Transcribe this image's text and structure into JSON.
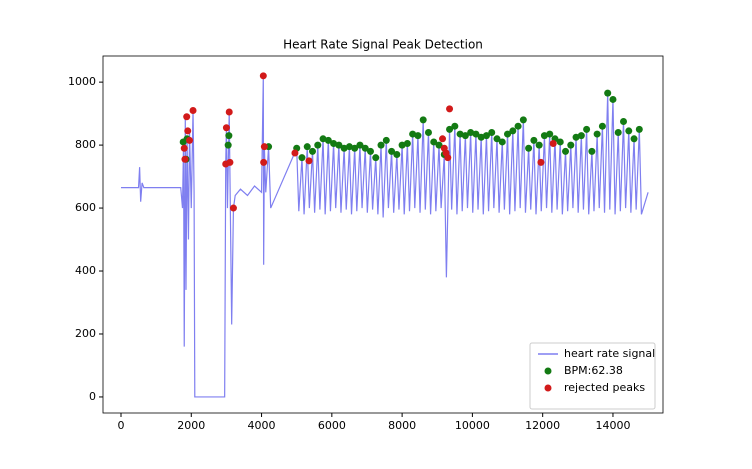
{
  "chart_data": {
    "type": "line",
    "title": "Heart Rate Signal Peak Detection",
    "xlim": [
      -512,
      15424
    ],
    "ylim": [
      -51,
      1083
    ],
    "xticks": [
      0,
      2000,
      4000,
      6000,
      8000,
      10000,
      12000,
      14000
    ],
    "yticks": [
      0,
      200,
      400,
      600,
      800,
      1000
    ],
    "legend": "lower right",
    "series": [
      {
        "name": "heart rate signal",
        "type": "line",
        "color": "#7f7ff0",
        "x": [
          0,
          500,
          530,
          560,
          600,
          650,
          1700,
          1750,
          1780,
          1800,
          1830,
          1850,
          1880,
          1920,
          1950,
          2000,
          2050,
          2080,
          2100,
          2950,
          2980,
          3000,
          3030,
          3080,
          3150,
          3200,
          3250,
          3400,
          3600,
          3800,
          4000,
          4050,
          4060,
          4080,
          4120,
          4200,
          4260,
          5000,
          5060,
          5150,
          5210,
          5300,
          5360,
          5450,
          5510,
          5600,
          5660,
          5750,
          5810,
          5900,
          5960,
          6050,
          6110,
          6200,
          6260,
          6350,
          6410,
          6500,
          6560,
          6650,
          6710,
          6800,
          6860,
          6950,
          7010,
          7100,
          7160,
          7250,
          7310,
          7400,
          7460,
          7550,
          7610,
          7700,
          7760,
          7850,
          7910,
          8000,
          8060,
          8150,
          8210,
          8300,
          8360,
          8450,
          8510,
          8600,
          8660,
          8750,
          8810,
          8900,
          8960,
          9050,
          9110,
          9200,
          9260,
          9350,
          9410,
          9500,
          9560,
          9650,
          9710,
          9800,
          9860,
          9950,
          10010,
          10100,
          10160,
          10250,
          10310,
          10400,
          10460,
          10550,
          10610,
          10700,
          10760,
          10850,
          10910,
          11000,
          11060,
          11150,
          11210,
          11300,
          11360,
          11450,
          11510,
          11600,
          11660,
          11750,
          11810,
          11900,
          11960,
          12050,
          12110,
          12200,
          12260,
          12350,
          12410,
          12500,
          12560,
          12650,
          12710,
          12800,
          12860,
          12950,
          13010,
          13100,
          13160,
          13250,
          13310,
          13400,
          13460,
          13550,
          13610,
          13700,
          13760,
          13850,
          13910,
          14000,
          14060,
          14150,
          14210,
          14300,
          14360,
          14450,
          14510,
          14600,
          14660,
          14750,
          14810,
          15000
        ],
        "y": [
          665,
          665,
          730,
          620,
          680,
          665,
          665,
          600,
          810,
          160,
          890,
          340,
          820,
          500,
          845,
          600,
          910,
          650,
          0,
          0,
          740,
          855,
          600,
          905,
          230,
          600,
          640,
          660,
          640,
          670,
          650,
          1020,
          420,
          795,
          650,
          795,
          600,
          790,
          590,
          760,
          580,
          795,
          600,
          780,
          585,
          800,
          595,
          820,
          580,
          815,
          590,
          805,
          600,
          800,
          585,
          790,
          595,
          795,
          580,
          790,
          590,
          800,
          600,
          790,
          585,
          780,
          595,
          760,
          580,
          800,
          570,
          815,
          600,
          780,
          585,
          770,
          595,
          800,
          580,
          805,
          590,
          835,
          600,
          830,
          585,
          880,
          595,
          840,
          580,
          810,
          590,
          800,
          600,
          770,
          380,
          850,
          595,
          860,
          580,
          835,
          590,
          830,
          600,
          840,
          585,
          835,
          595,
          825,
          580,
          830,
          590,
          840,
          600,
          820,
          585,
          810,
          595,
          835,
          580,
          845,
          590,
          860,
          600,
          880,
          585,
          790,
          595,
          815,
          580,
          800,
          590,
          830,
          600,
          835,
          585,
          820,
          595,
          810,
          580,
          780,
          590,
          800,
          600,
          825,
          585,
          830,
          595,
          850,
          580,
          780,
          590,
          835,
          600,
          860,
          585,
          965,
          595,
          945,
          580,
          840,
          590,
          875,
          600,
          845,
          585,
          820,
          595,
          850,
          580,
          650
        ]
      },
      {
        "name": "BPM:62.38",
        "type": "scatter",
        "color": "#137a13",
        "x": [
          1770,
          1850,
          1880,
          3050,
          3070,
          4200,
          5000,
          5150,
          5300,
          5450,
          5600,
          5750,
          5900,
          6050,
          6200,
          6350,
          6500,
          6650,
          6800,
          6950,
          7100,
          7250,
          7400,
          7550,
          7700,
          7850,
          8000,
          8150,
          8300,
          8450,
          8600,
          8750,
          8900,
          9050,
          9200,
          9350,
          9500,
          9650,
          9800,
          9950,
          10100,
          10250,
          10400,
          10550,
          10700,
          10850,
          11000,
          11150,
          11300,
          11450,
          11600,
          11750,
          11900,
          12050,
          12200,
          12350,
          12500,
          12650,
          12800,
          12950,
          13100,
          13250,
          13400,
          13550,
          13700,
          13850,
          14000,
          14150,
          14300,
          14450,
          14600,
          14750
        ],
        "y": [
          810,
          755,
          820,
          800,
          830,
          795,
          790,
          760,
          795,
          780,
          800,
          820,
          815,
          805,
          800,
          790,
          795,
          790,
          800,
          790,
          780,
          760,
          800,
          815,
          780,
          770,
          800,
          805,
          835,
          830,
          880,
          840,
          810,
          800,
          770,
          850,
          860,
          835,
          830,
          840,
          835,
          825,
          830,
          840,
          820,
          810,
          835,
          845,
          860,
          880,
          790,
          815,
          800,
          830,
          835,
          820,
          810,
          780,
          800,
          825,
          830,
          850,
          780,
          835,
          860,
          965,
          945,
          840,
          875,
          845,
          820,
          850
        ]
      },
      {
        "name": "rejected peaks",
        "type": "scatter",
        "color": "#d21a1a",
        "x": [
          1800,
          1870,
          1900,
          1950,
          2050,
          1820,
          2980,
          3000,
          3080,
          3100,
          3200,
          4050,
          4080,
          4060,
          4950,
          5350,
          9150,
          9200,
          9250,
          9300,
          9350,
          11950,
          12300
        ],
        "y": [
          790,
          890,
          845,
          815,
          910,
          755,
          740,
          855,
          905,
          745,
          600,
          1020,
          795,
          745,
          775,
          750,
          820,
          790,
          775,
          760,
          915,
          745,
          805
        ]
      }
    ]
  }
}
